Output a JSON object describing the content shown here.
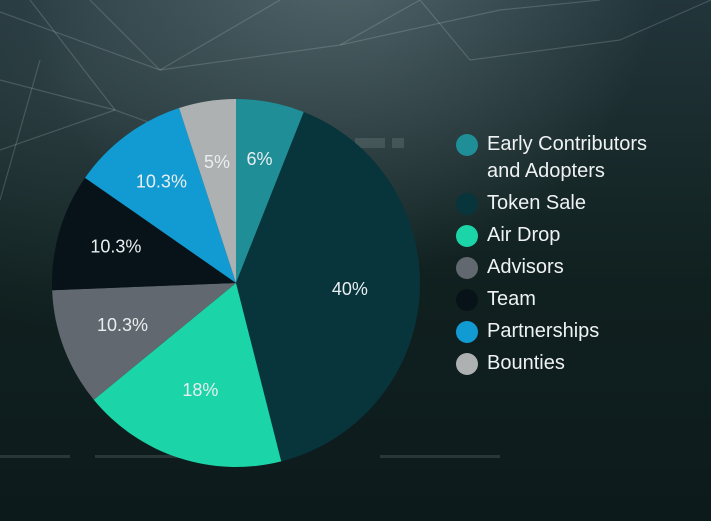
{
  "chart_data": {
    "type": "pie",
    "categories": [
      "Early Contributors and Adopters",
      "Token Sale",
      "Air Drop",
      "Advisors",
      "Team",
      "Partnerships",
      "Bounties"
    ],
    "values": [
      6,
      40,
      18,
      10.3,
      10.3,
      10.3,
      5
    ],
    "value_labels": [
      "6%",
      "40%",
      "18%",
      "10.3%",
      "10.3%",
      "10.3%",
      "5%"
    ],
    "colors": [
      "#1f8e97",
      "#08343b",
      "#1bd4a7",
      "#62686f",
      "#071318",
      "#129bd2",
      "#adb1b2"
    ],
    "start_angle_deg": 0,
    "direction": "clockwise",
    "legend_placement": "right",
    "title": ""
  }
}
